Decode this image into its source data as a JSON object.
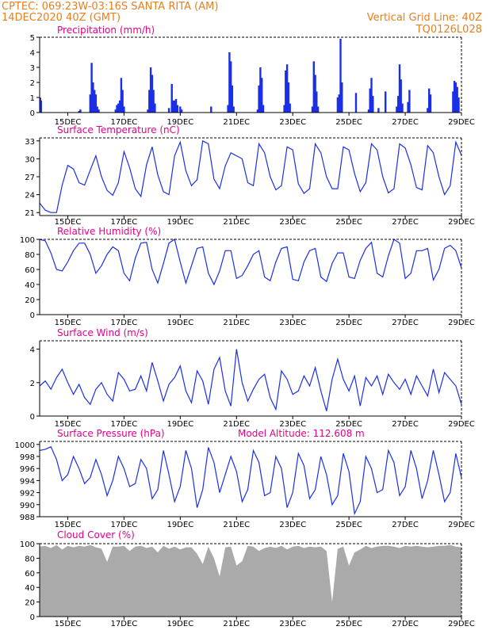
{
  "header": {
    "left_line1": "CPTEC:  069:23W-03:16S  SANTA RITA (AM)",
    "left_line2": "14DEC2020 40Z (GMT)",
    "right_line1": "Vertical Grid Line: 40Z",
    "right_line2": "TQ0126L028"
  },
  "colors": {
    "orange": "#e87f1e",
    "magenta": "#e6008a",
    "series": "#1b2fe6",
    "cloud": "#aaaaaa",
    "axis": "#000000"
  },
  "x_axis": {
    "range_days": [
      0,
      15
    ],
    "tick_days": [
      1,
      3,
      5,
      7,
      9,
      11,
      13,
      15
    ],
    "tick_labels": [
      "15DEC",
      "17DEC",
      "19DEC",
      "21DEC",
      "23DEC",
      "25DEC",
      "27DEC",
      "29DEC"
    ]
  },
  "chart_data": [
    {
      "type": "bar",
      "title": "Precipitation (mm/h)",
      "ylim": [
        0,
        5
      ],
      "yticks": [
        0,
        1,
        2,
        3,
        4,
        5
      ],
      "x_unit": "days since 14DEC 00Z",
      "x": [
        0.02,
        0.05,
        1.4,
        1.45,
        1.8,
        1.85,
        1.9,
        1.95,
        2.0,
        2.05,
        2.1,
        2.7,
        2.75,
        2.8,
        2.85,
        2.9,
        2.95,
        3.0,
        3.85,
        3.9,
        3.95,
        4.0,
        4.05,
        4.1,
        4.6,
        4.7,
        4.75,
        4.8,
        4.85,
        4.9,
        5.0,
        5.05,
        6.1,
        6.7,
        6.75,
        6.8,
        6.85,
        6.9,
        7.75,
        7.8,
        7.85,
        7.9,
        7.95,
        8.7,
        8.75,
        8.8,
        8.85,
        8.9,
        9.7,
        9.75,
        9.8,
        9.85,
        9.9,
        10.6,
        10.65,
        10.7,
        10.75,
        11.25,
        11.7,
        11.75,
        11.8,
        11.85,
        12.05,
        12.3,
        12.7,
        12.75,
        12.8,
        12.85,
        12.9,
        13.1,
        13.15,
        13.8,
        13.85,
        13.9,
        14.7,
        14.75,
        14.8,
        14.85,
        14.9
      ],
      "values": [
        1.0,
        0.8,
        0.1,
        0.2,
        1.2,
        3.3,
        2.0,
        1.5,
        1.2,
        0.4,
        0.2,
        0.2,
        0.5,
        0.6,
        0.8,
        2.3,
        1.5,
        0.4,
        0.2,
        1.5,
        3.0,
        2.5,
        1.5,
        0.6,
        0.3,
        1.9,
        0.8,
        0.8,
        0.9,
        0.5,
        0.4,
        0.2,
        0.4,
        0.5,
        4.0,
        3.4,
        1.8,
        0.4,
        0.2,
        1.8,
        3.0,
        2.3,
        0.5,
        0.5,
        2.8,
        3.2,
        2.0,
        0.6,
        0.4,
        3.4,
        2.5,
        1.4,
        0.4,
        1.0,
        1.2,
        4.9,
        2.0,
        1.3,
        0.2,
        1.6,
        2.3,
        1.1,
        0.3,
        1.4,
        0.4,
        1.1,
        3.2,
        2.2,
        0.6,
        0.7,
        1.5,
        0.3,
        1.6,
        1.2,
        1.4,
        2.1,
        2.0,
        1.7,
        1.0
      ]
    },
    {
      "type": "line",
      "title": "Surface Temperature (nC)",
      "ylim": [
        20.5,
        33.5
      ],
      "yticks": [
        21,
        24,
        27,
        30,
        33
      ],
      "x_unit": "days since 14DEC 00Z",
      "x": [
        0,
        0.2,
        0.4,
        0.6,
        0.8,
        1.0,
        1.2,
        1.4,
        1.6,
        1.8,
        2.0,
        2.2,
        2.4,
        2.6,
        2.8,
        3.0,
        3.2,
        3.4,
        3.6,
        3.8,
        4.0,
        4.2,
        4.4,
        4.6,
        4.8,
        5.0,
        5.2,
        5.4,
        5.6,
        5.8,
        6.0,
        6.2,
        6.4,
        6.6,
        6.8,
        7.0,
        7.2,
        7.4,
        7.6,
        7.8,
        8.0,
        8.2,
        8.4,
        8.6,
        8.8,
        9.0,
        9.2,
        9.4,
        9.6,
        9.8,
        10.0,
        10.2,
        10.4,
        10.6,
        10.8,
        11.0,
        11.2,
        11.4,
        11.6,
        11.8,
        12.0,
        12.2,
        12.4,
        12.6,
        12.8,
        13.0,
        13.2,
        13.4,
        13.6,
        13.8,
        14.0,
        14.2,
        14.4,
        14.6,
        14.8,
        15.0
      ],
      "values": [
        22.6,
        21.4,
        21.0,
        21.0,
        25.6,
        28.9,
        28.3,
        26.0,
        25.6,
        28.1,
        30.5,
        27.0,
        24.7,
        23.9,
        26.0,
        31.2,
        28.5,
        25.0,
        23.7,
        29.0,
        32.0,
        27.3,
        24.5,
        24.0,
        30.5,
        32.8,
        28.0,
        25.5,
        26.5,
        33.0,
        32.5,
        26.6,
        25.0,
        28.8,
        31.0,
        30.5,
        30.0,
        26.0,
        25.5,
        32.5,
        31.0,
        27.0,
        24.8,
        25.5,
        32.0,
        31.5,
        25.8,
        24.2,
        25.0,
        32.5,
        31.0,
        27.0,
        25.0,
        25.0,
        32.0,
        31.5,
        27.5,
        24.5,
        26.0,
        32.5,
        31.5,
        27.0,
        24.3,
        25.0,
        32.5,
        31.8,
        29.0,
        25.2,
        24.8,
        32.2,
        31.0,
        27.0,
        24.0,
        25.5,
        32.8,
        30.6
      ]
    },
    {
      "type": "line",
      "title": "Relative Humidity (%)",
      "ylim": [
        0,
        100
      ],
      "yticks": [
        0,
        20,
        40,
        60,
        80,
        100
      ],
      "x_unit": "days since 14DEC 00Z",
      "x": [
        0,
        0.2,
        0.4,
        0.6,
        0.8,
        1.0,
        1.2,
        1.4,
        1.6,
        1.8,
        2.0,
        2.2,
        2.4,
        2.6,
        2.8,
        3.0,
        3.2,
        3.4,
        3.6,
        3.8,
        4.0,
        4.2,
        4.4,
        4.6,
        4.8,
        5.0,
        5.2,
        5.4,
        5.6,
        5.8,
        6.0,
        6.2,
        6.4,
        6.6,
        6.8,
        7.0,
        7.2,
        7.4,
        7.6,
        7.8,
        8.0,
        8.2,
        8.4,
        8.6,
        8.8,
        9.0,
        9.2,
        9.4,
        9.6,
        9.8,
        10.0,
        10.2,
        10.4,
        10.6,
        10.8,
        11.0,
        11.2,
        11.4,
        11.6,
        11.8,
        12.0,
        12.2,
        12.4,
        12.6,
        12.8,
        13.0,
        13.2,
        13.4,
        13.6,
        13.8,
        14.0,
        14.2,
        14.4,
        14.6,
        14.8,
        15.0
      ],
      "values": [
        100,
        98,
        82,
        60,
        58,
        70,
        85,
        95,
        95,
        80,
        55,
        65,
        80,
        90,
        85,
        55,
        45,
        75,
        95,
        96,
        60,
        42,
        68,
        95,
        100,
        70,
        42,
        65,
        88,
        90,
        55,
        40,
        58,
        85,
        85,
        48,
        52,
        65,
        80,
        85,
        50,
        45,
        70,
        88,
        90,
        47,
        45,
        70,
        85,
        88,
        50,
        44,
        68,
        82,
        82,
        50,
        48,
        72,
        88,
        96,
        55,
        50,
        78,
        100,
        95,
        48,
        55,
        85,
        85,
        88,
        46,
        60,
        88,
        92,
        85,
        62
      ]
    },
    {
      "type": "line",
      "title": "Surface Wind (m/s)",
      "ylim": [
        0,
        4.5
      ],
      "yticks": [
        0,
        2,
        4
      ],
      "x_unit": "days since 14DEC 00Z",
      "x": [
        0,
        0.2,
        0.4,
        0.6,
        0.8,
        1.0,
        1.2,
        1.4,
        1.6,
        1.8,
        2.0,
        2.2,
        2.4,
        2.6,
        2.8,
        3.0,
        3.2,
        3.4,
        3.6,
        3.8,
        4.0,
        4.2,
        4.4,
        4.6,
        4.8,
        5.0,
        5.2,
        5.4,
        5.6,
        5.8,
        6.0,
        6.2,
        6.4,
        6.6,
        6.8,
        7.0,
        7.2,
        7.4,
        7.6,
        7.8,
        8.0,
        8.2,
        8.4,
        8.6,
        8.8,
        9.0,
        9.2,
        9.4,
        9.6,
        9.8,
        10.0,
        10.2,
        10.4,
        10.6,
        10.8,
        11.0,
        11.2,
        11.4,
        11.6,
        11.8,
        12.0,
        12.2,
        12.4,
        12.6,
        12.8,
        13.0,
        13.2,
        13.4,
        13.6,
        13.8,
        14.0,
        14.2,
        14.4,
        14.6,
        14.8,
        15.0
      ],
      "values": [
        1.8,
        2.1,
        1.6,
        2.3,
        2.8,
        2.0,
        1.3,
        1.9,
        1.1,
        0.7,
        1.6,
        2.0,
        1.3,
        0.9,
        2.6,
        2.2,
        1.5,
        1.6,
        2.4,
        1.5,
        3.2,
        2.1,
        0.9,
        1.9,
        2.3,
        3.0,
        1.5,
        0.8,
        2.7,
        2.1,
        0.7,
        2.8,
        3.5,
        1.5,
        0.6,
        4.0,
        2.0,
        0.9,
        1.6,
        2.2,
        2.5,
        1.1,
        0.4,
        2.7,
        2.2,
        1.3,
        1.5,
        2.4,
        1.8,
        2.9,
        1.5,
        0.3,
        2.2,
        3.4,
        2.2,
        1.5,
        2.4,
        0.6,
        2.3,
        1.8,
        2.4,
        1.3,
        2.5,
        2.0,
        1.6,
        2.2,
        1.3,
        2.4,
        1.8,
        1.2,
        2.8,
        1.4,
        2.6,
        2.2,
        1.8,
        0.7
      ]
    },
    {
      "type": "line",
      "title": "Surface Pressure (hPa)",
      "annotation": "Model Altitude: 112.608 m",
      "ylim": [
        988,
        1000.5
      ],
      "yticks": [
        988,
        990,
        992,
        994,
        996,
        998,
        1000
      ],
      "x_unit": "days since 14DEC 00Z",
      "x": [
        0,
        0.2,
        0.4,
        0.6,
        0.8,
        1.0,
        1.2,
        1.4,
        1.6,
        1.8,
        2.0,
        2.2,
        2.4,
        2.6,
        2.8,
        3.0,
        3.2,
        3.4,
        3.6,
        3.8,
        4.0,
        4.2,
        4.4,
        4.6,
        4.8,
        5.0,
        5.2,
        5.4,
        5.6,
        5.8,
        6.0,
        6.2,
        6.4,
        6.6,
        6.8,
        7.0,
        7.2,
        7.4,
        7.6,
        7.8,
        8.0,
        8.2,
        8.4,
        8.6,
        8.8,
        9.0,
        9.2,
        9.4,
        9.6,
        9.8,
        10.0,
        10.2,
        10.4,
        10.6,
        10.8,
        11.0,
        11.2,
        11.4,
        11.6,
        11.8,
        12.0,
        12.2,
        12.4,
        12.6,
        12.8,
        13.0,
        13.2,
        13.4,
        13.6,
        13.8,
        14.0,
        14.2,
        14.4,
        14.6,
        14.8,
        15.0
      ],
      "values": [
        999,
        999.2,
        999.6,
        997.5,
        994,
        995,
        998,
        996,
        993.5,
        994.5,
        997.5,
        995,
        991.5,
        994,
        998,
        996,
        993,
        993.5,
        997.5,
        996,
        991,
        992.5,
        999,
        995,
        990.5,
        993,
        999,
        996,
        989.5,
        992.5,
        999.5,
        997,
        992,
        995,
        998,
        995.5,
        990.5,
        992.5,
        999,
        997,
        991.5,
        992,
        998,
        996,
        989.5,
        992,
        998.5,
        996.5,
        991,
        992.5,
        998,
        995,
        990,
        991.5,
        998.5,
        995.5,
        988.5,
        990.5,
        998,
        996,
        992,
        992.5,
        999,
        997,
        991.5,
        993,
        999,
        996,
        991,
        994,
        999,
        995,
        990.5,
        992,
        998.5,
        994.5
      ]
    },
    {
      "type": "area",
      "title": "Cloud Cover (%)",
      "ylim": [
        0,
        100
      ],
      "yticks": [
        0,
        20,
        40,
        60,
        80,
        100
      ],
      "x_unit": "days since 14DEC 00Z",
      "x": [
        0,
        0.2,
        0.4,
        0.6,
        0.8,
        1.0,
        1.2,
        1.4,
        1.6,
        1.8,
        2.0,
        2.2,
        2.4,
        2.6,
        2.8,
        3.0,
        3.2,
        3.4,
        3.6,
        3.8,
        4.0,
        4.2,
        4.4,
        4.6,
        4.8,
        5.0,
        5.2,
        5.4,
        5.6,
        5.8,
        6.0,
        6.2,
        6.4,
        6.6,
        6.8,
        7.0,
        7.2,
        7.4,
        7.6,
        7.8,
        8.0,
        8.2,
        8.4,
        8.6,
        8.8,
        9.0,
        9.2,
        9.4,
        9.6,
        9.8,
        10.0,
        10.2,
        10.4,
        10.6,
        10.8,
        11.0,
        11.2,
        11.4,
        11.6,
        11.8,
        12.0,
        12.2,
        12.4,
        12.6,
        12.8,
        13.0,
        13.2,
        13.4,
        13.6,
        13.8,
        14.0,
        14.2,
        14.4,
        14.6,
        14.8,
        15.0
      ],
      "values": [
        96,
        97,
        94,
        98,
        92,
        97,
        95,
        97,
        96,
        98,
        95,
        93,
        75,
        96,
        96,
        97,
        90,
        96,
        97,
        94,
        96,
        88,
        97,
        93,
        96,
        92,
        95,
        95,
        86,
        72,
        96,
        80,
        55,
        95,
        96,
        70,
        76,
        97,
        96,
        90,
        94,
        96,
        94,
        97,
        92,
        96,
        97,
        94,
        96,
        95,
        96,
        90,
        20,
        93,
        96,
        70,
        88,
        92,
        97,
        94,
        96,
        97,
        97,
        96,
        94,
        97,
        96,
        97,
        96,
        95,
        96,
        97,
        97,
        98,
        96,
        95
      ]
    }
  ]
}
